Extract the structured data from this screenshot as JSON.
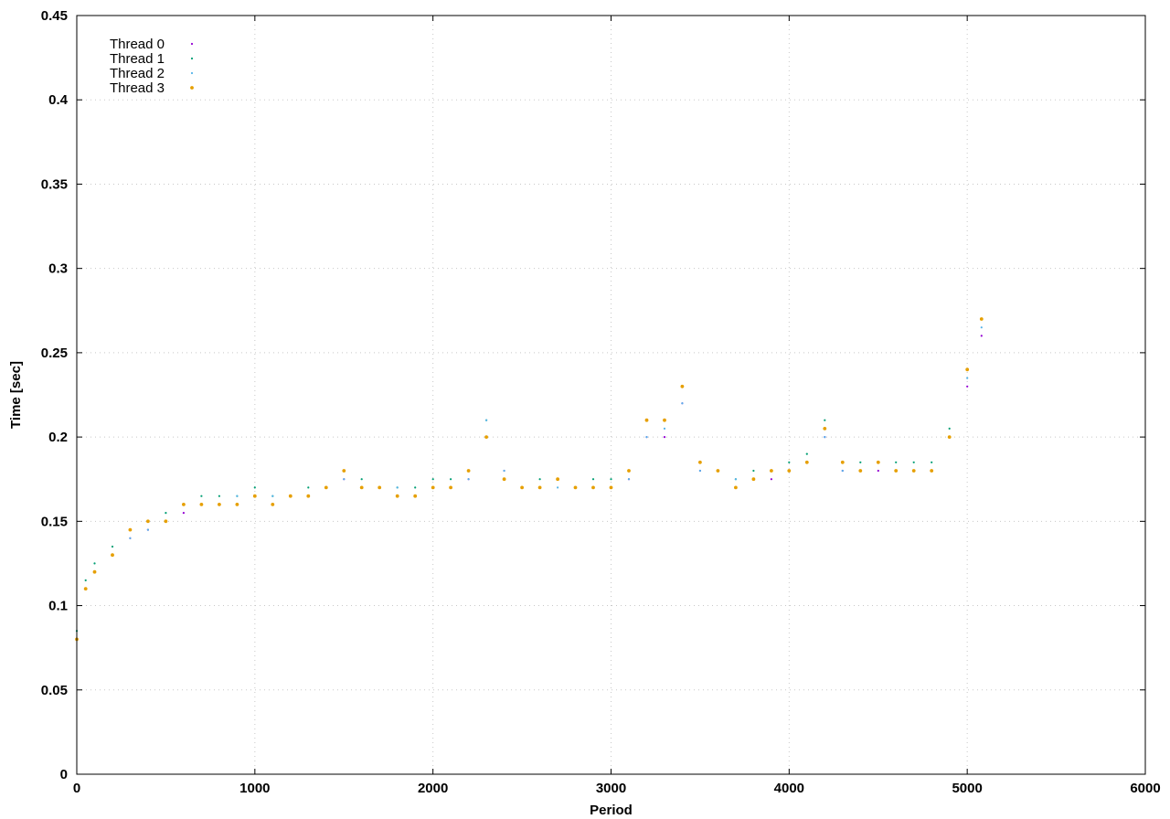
{
  "chart_data": {
    "type": "scatter",
    "title": "",
    "xlabel": "Period",
    "ylabel": "Time [sec]",
    "xlim": [
      0,
      6000
    ],
    "ylim": [
      0,
      0.45
    ],
    "x_ticks": [
      "0",
      "1000",
      "2000",
      "3000",
      "4000",
      "5000",
      "6000"
    ],
    "y_ticks": [
      "0",
      "0.05",
      "0.1",
      "0.15",
      "0.2",
      "0.25",
      "0.3",
      "0.35",
      "0.4",
      "0.45"
    ],
    "grid": true,
    "legend_position": "top-left",
    "series": [
      {
        "name": "Thread 0",
        "color": "#9400d3",
        "x": [
          0,
          50,
          100,
          200,
          300,
          400,
          500,
          600,
          700,
          800,
          900,
          1000,
          1100,
          1200,
          1300,
          1400,
          1500,
          1600,
          1700,
          1800,
          1900,
          2000,
          2100,
          2200,
          2300,
          2400,
          2500,
          2600,
          2700,
          2800,
          2900,
          3000,
          3100,
          3200,
          3300,
          3400,
          3500,
          3600,
          3700,
          3800,
          3900,
          4000,
          4100,
          4200,
          4300,
          4400,
          4500,
          4600,
          4700,
          4800,
          4900,
          5000,
          5080
        ],
        "y": [
          0.08,
          0.11,
          0.12,
          0.13,
          0.14,
          0.145,
          0.15,
          0.155,
          0.16,
          0.16,
          0.16,
          0.165,
          0.16,
          0.165,
          0.165,
          0.17,
          0.175,
          0.17,
          0.17,
          0.165,
          0.165,
          0.17,
          0.17,
          0.175,
          0.2,
          0.18,
          0.17,
          0.17,
          0.175,
          0.17,
          0.17,
          0.17,
          0.175,
          0.2,
          0.2,
          0.22,
          0.18,
          0.18,
          0.17,
          0.175,
          0.175,
          0.18,
          0.185,
          0.2,
          0.18,
          0.18,
          0.18,
          0.18,
          0.18,
          0.18,
          0.2,
          0.23,
          0.26
        ]
      },
      {
        "name": "Thread 1",
        "color": "#009e73",
        "x": [
          0,
          50,
          100,
          200,
          300,
          400,
          500,
          600,
          700,
          800,
          900,
          1000,
          1100,
          1200,
          1300,
          1400,
          1500,
          1600,
          1700,
          1800,
          1900,
          2000,
          2100,
          2200,
          2300,
          2400,
          2500,
          2600,
          2700,
          2800,
          2900,
          3000,
          3100,
          3200,
          3300,
          3400,
          3500,
          3600,
          3700,
          3800,
          3900,
          4000,
          4100,
          4200,
          4300,
          4400,
          4500,
          4600,
          4700,
          4800,
          4900,
          5000,
          5080
        ],
        "y": [
          0.085,
          0.115,
          0.125,
          0.135,
          0.145,
          0.15,
          0.155,
          0.16,
          0.165,
          0.165,
          0.165,
          0.17,
          0.165,
          0.165,
          0.17,
          0.17,
          0.18,
          0.175,
          0.17,
          0.17,
          0.17,
          0.175,
          0.175,
          0.18,
          0.21,
          0.175,
          0.17,
          0.175,
          0.175,
          0.17,
          0.175,
          0.175,
          0.18,
          0.21,
          0.21,
          0.23,
          0.185,
          0.18,
          0.175,
          0.18,
          0.18,
          0.185,
          0.19,
          0.21,
          0.185,
          0.185,
          0.185,
          0.185,
          0.185,
          0.185,
          0.205,
          0.24,
          0.27
        ]
      },
      {
        "name": "Thread 2",
        "color": "#56b4e9",
        "x": [
          0,
          50,
          100,
          200,
          300,
          400,
          500,
          600,
          700,
          800,
          900,
          1000,
          1100,
          1200,
          1300,
          1400,
          1500,
          1600,
          1700,
          1800,
          1900,
          2000,
          2100,
          2200,
          2300,
          2400,
          2500,
          2600,
          2700,
          2800,
          2900,
          3000,
          3100,
          3200,
          3300,
          3400,
          3500,
          3600,
          3700,
          3800,
          3900,
          4000,
          4100,
          4200,
          4300,
          4400,
          4500,
          4600,
          4700,
          4800,
          4900,
          5000,
          5080
        ],
        "y": [
          0.08,
          0.11,
          0.12,
          0.13,
          0.14,
          0.145,
          0.15,
          0.16,
          0.16,
          0.16,
          0.165,
          0.165,
          0.165,
          0.165,
          0.165,
          0.17,
          0.175,
          0.17,
          0.17,
          0.17,
          0.165,
          0.17,
          0.17,
          0.175,
          0.21,
          0.18,
          0.17,
          0.17,
          0.17,
          0.17,
          0.17,
          0.17,
          0.175,
          0.2,
          0.205,
          0.22,
          0.18,
          0.18,
          0.175,
          0.175,
          0.18,
          0.18,
          0.185,
          0.2,
          0.18,
          0.18,
          0.185,
          0.18,
          0.18,
          0.18,
          0.2,
          0.235,
          0.265
        ]
      },
      {
        "name": "Thread 3",
        "color": "#e69f00",
        "x": [
          0,
          50,
          100,
          200,
          300,
          400,
          500,
          600,
          700,
          800,
          900,
          1000,
          1100,
          1200,
          1300,
          1400,
          1500,
          1600,
          1700,
          1800,
          1900,
          2000,
          2100,
          2200,
          2300,
          2400,
          2500,
          2600,
          2700,
          2800,
          2900,
          3000,
          3100,
          3200,
          3300,
          3400,
          3500,
          3600,
          3700,
          3800,
          3900,
          4000,
          4100,
          4200,
          4300,
          4400,
          4500,
          4600,
          4700,
          4800,
          4900,
          5000,
          5080
        ],
        "y": [
          0.08,
          0.11,
          0.12,
          0.13,
          0.145,
          0.15,
          0.15,
          0.16,
          0.16,
          0.16,
          0.16,
          0.165,
          0.16,
          0.165,
          0.165,
          0.17,
          0.18,
          0.17,
          0.17,
          0.165,
          0.165,
          0.17,
          0.17,
          0.18,
          0.2,
          0.175,
          0.17,
          0.17,
          0.175,
          0.17,
          0.17,
          0.17,
          0.18,
          0.21,
          0.21,
          0.23,
          0.185,
          0.18,
          0.17,
          0.175,
          0.18,
          0.18,
          0.185,
          0.205,
          0.185,
          0.18,
          0.185,
          0.18,
          0.18,
          0.18,
          0.2,
          0.24,
          0.27
        ]
      }
    ]
  }
}
